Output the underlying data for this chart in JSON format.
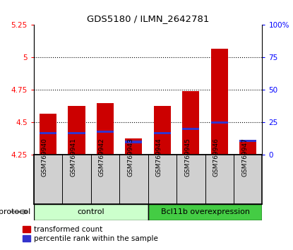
{
  "title": "GDS5180 / ILMN_2642781",
  "samples": [
    "GSM769940",
    "GSM769941",
    "GSM769942",
    "GSM769943",
    "GSM769944",
    "GSM769945",
    "GSM769946",
    "GSM769947"
  ],
  "transformed_count": [
    4.57,
    4.63,
    4.65,
    4.38,
    4.63,
    4.74,
    5.07,
    4.35
  ],
  "percentile_rank": [
    17,
    17,
    18,
    10,
    17,
    20,
    25,
    11
  ],
  "bar_bottom": 4.25,
  "ylim_left": [
    4.25,
    5.25
  ],
  "ylim_right": [
    0,
    100
  ],
  "yticks_left": [
    4.25,
    4.5,
    4.75,
    5.0,
    5.25
  ],
  "yticks_right": [
    0,
    25,
    50,
    75,
    100
  ],
  "ytick_labels_left": [
    "4.25",
    "4.5",
    "4.75",
    "5",
    "5.25"
  ],
  "ytick_labels_right": [
    "0",
    "25",
    "50",
    "75",
    "100%"
  ],
  "bar_color": "#cc0000",
  "blue_color": "#3333cc",
  "control_color": "#ccffcc",
  "overexp_color": "#44cc44",
  "control_label": "control",
  "overexp_label": "Bcl11b overexpression",
  "protocol_label": "protocol",
  "legend_red": "transformed count",
  "legend_blue": "percentile rank within the sample",
  "bar_width": 0.6,
  "blue_bar_height": 0.018
}
